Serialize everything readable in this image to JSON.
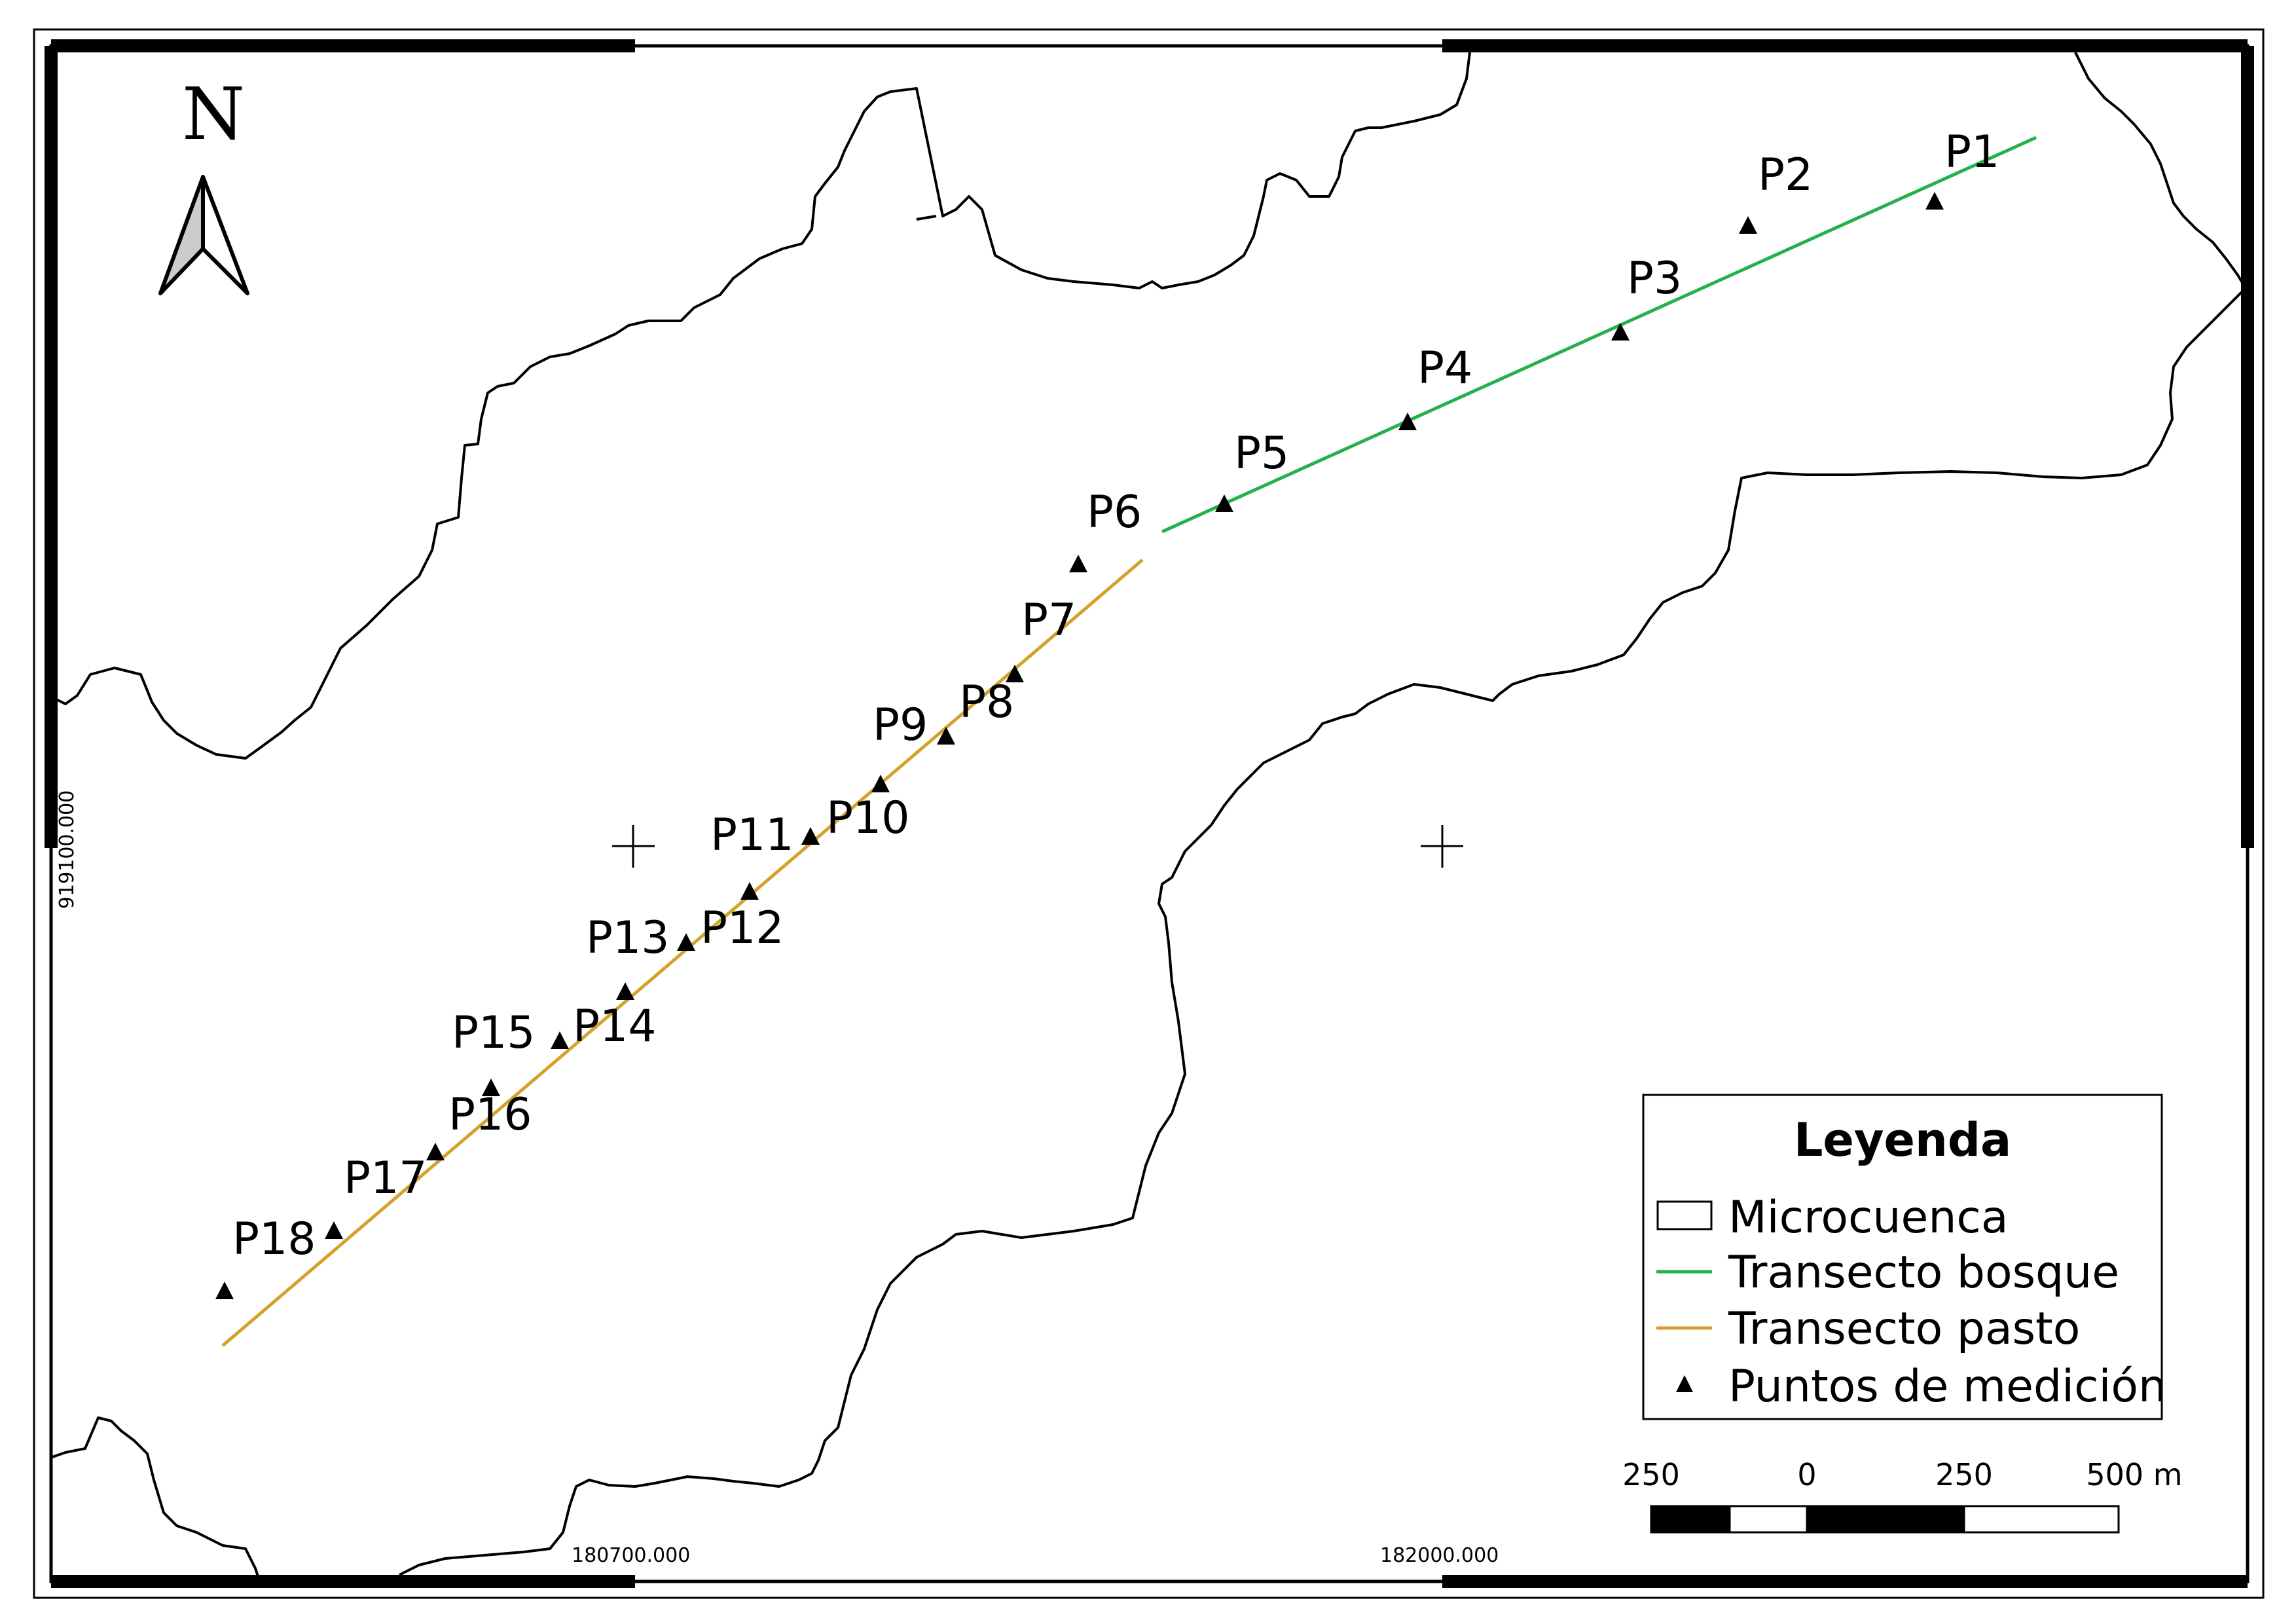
{
  "north_arrow": {
    "label": "N",
    "icon": "north-arrow-icon"
  },
  "grid_labels": {
    "x1": "180700.000",
    "x2": "182000.000",
    "y1": "919100.000"
  },
  "transect_colors": {
    "bosque": "#22b14c",
    "pasto": "#d4a12a"
  },
  "points": [
    {
      "label": "P1"
    },
    {
      "label": "P2"
    },
    {
      "label": "P3"
    },
    {
      "label": "P4"
    },
    {
      "label": "P5"
    },
    {
      "label": "P6"
    },
    {
      "label": "P7"
    },
    {
      "label": "P8"
    },
    {
      "label": "P9"
    },
    {
      "label": "P10"
    },
    {
      "label": "P11"
    },
    {
      "label": "P12"
    },
    {
      "label": "P13"
    },
    {
      "label": "P14"
    },
    {
      "label": "P15"
    },
    {
      "label": "P16"
    },
    {
      "label": "P17"
    },
    {
      "label": "P18"
    }
  ],
  "legend": {
    "title": "Leyenda",
    "items": [
      {
        "label": "Microcuenca",
        "symbol": "polygon-outline"
      },
      {
        "label": "Transecto bosque",
        "symbol": "green-line"
      },
      {
        "label": "Transecto pasto",
        "symbol": "gold-line"
      },
      {
        "label": "Puntos de medición",
        "symbol": "triangle-marker"
      }
    ]
  },
  "scale_bar": {
    "labels": [
      "250",
      "0",
      "250",
      "500 m"
    ]
  }
}
